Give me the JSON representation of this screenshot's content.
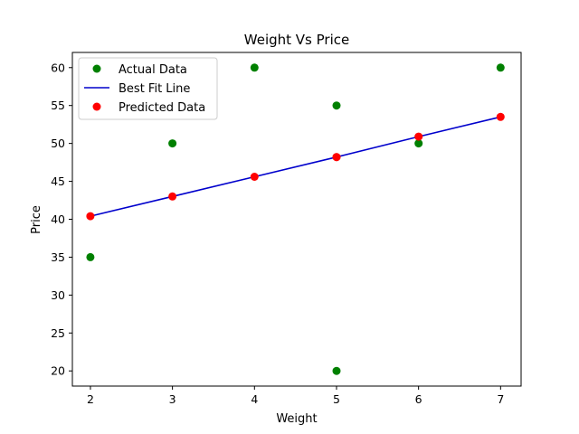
{
  "chart_data": {
    "type": "scatter",
    "title": "Weight Vs Price",
    "xlabel": "Weight",
    "ylabel": "Price",
    "xlim": [
      1.78,
      7.25
    ],
    "ylim": [
      18,
      62
    ],
    "xticks": [
      2,
      3,
      4,
      5,
      6,
      7
    ],
    "yticks": [
      20,
      25,
      30,
      35,
      40,
      45,
      50,
      55,
      60
    ],
    "grid": false,
    "legend_position": "top-left",
    "series": [
      {
        "name": "Actual Data",
        "kind": "scatter",
        "color": "#008000",
        "points": [
          [
            2,
            35
          ],
          [
            3,
            50
          ],
          [
            4,
            60
          ],
          [
            5,
            55
          ],
          [
            5,
            20
          ],
          [
            6,
            50
          ],
          [
            7,
            60
          ]
        ]
      },
      {
        "name": "Best Fit Line",
        "kind": "line",
        "color": "#0000cc",
        "points": [
          [
            2,
            40.4
          ],
          [
            3,
            43.0
          ],
          [
            4,
            45.6
          ],
          [
            5,
            48.2
          ],
          [
            6,
            50.9
          ],
          [
            7,
            53.5
          ]
        ]
      },
      {
        "name": "Predicted Data",
        "kind": "scatter",
        "color": "#ff0000",
        "points": [
          [
            2,
            40.4
          ],
          [
            3,
            43.0
          ],
          [
            4,
            45.6
          ],
          [
            5,
            48.2
          ],
          [
            5,
            48.2
          ],
          [
            6,
            50.9
          ],
          [
            7,
            53.5
          ]
        ]
      }
    ]
  }
}
